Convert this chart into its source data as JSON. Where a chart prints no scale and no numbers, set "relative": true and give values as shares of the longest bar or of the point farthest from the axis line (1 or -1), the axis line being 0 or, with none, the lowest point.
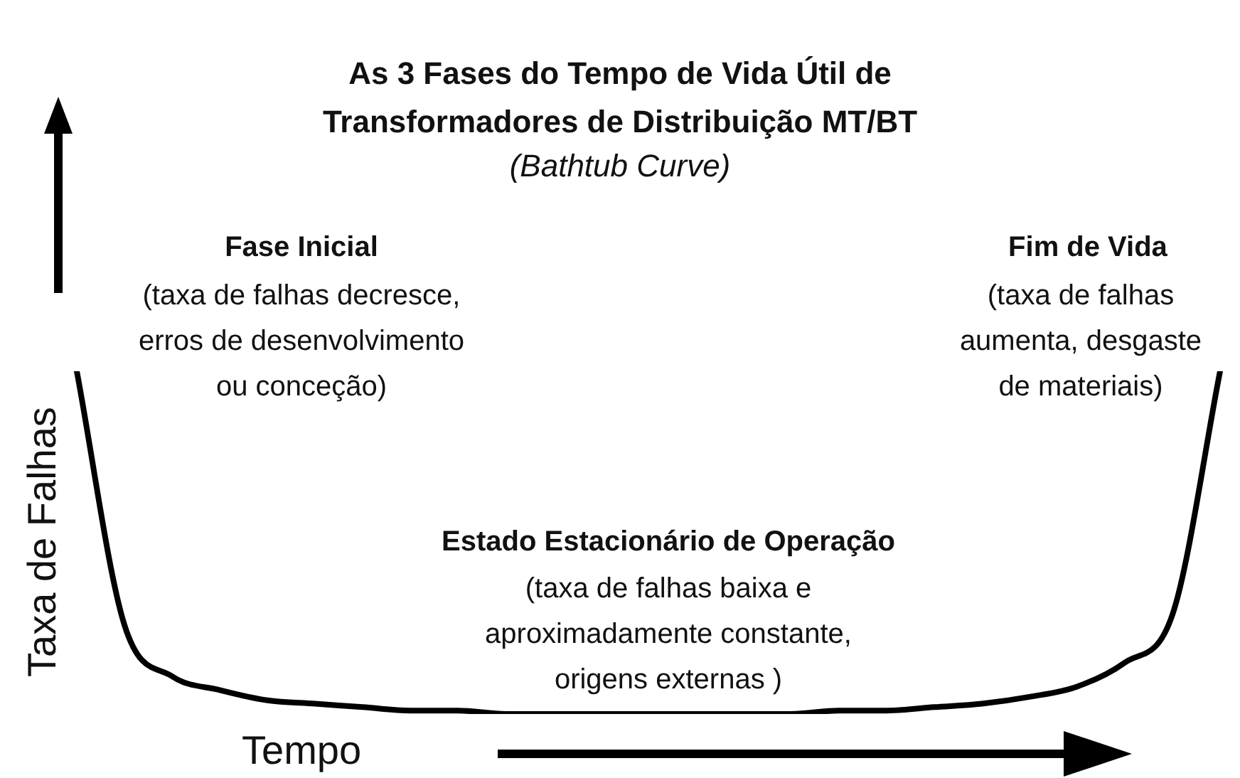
{
  "chart_data": {
    "type": "line",
    "title": "As 3 Fases do Tempo de Vida Útil de Transformadores de Distribuição MT/BT",
    "subtitle": "(Bathtub Curve)",
    "xlabel": "Tempo",
    "ylabel": "Taxa de Falhas",
    "relative": true,
    "annotations": [
      "Fase Inicial",
      "(taxa de falhas decresce, erros de desenvolvimento ou conceção)",
      "Fim de Vida",
      "(taxa de falhas aumenta, desgaste de materiais)",
      "Estado Estacionário de Operação",
      "(taxa de falhas baixa e aproximadamente constante, origens externas )"
    ],
    "categories": [
      null,
      null,
      null,
      null,
      null,
      null,
      null,
      null,
      null,
      null,
      null,
      null,
      null,
      null,
      null,
      null,
      null,
      null,
      null,
      null,
      null,
      null,
      null,
      null,
      null
    ],
    "color": "#000000",
    "values": [
      1.0,
      0.26,
      0.11,
      0.07,
      0.04,
      0.03,
      0.02,
      0.01,
      0.01,
      0,
      0,
      0,
      0,
      0,
      0,
      0,
      0.01,
      0.01,
      0.02,
      0.03,
      0.05,
      0.08,
      0.15,
      0.29,
      1.0
    ]
  }
}
